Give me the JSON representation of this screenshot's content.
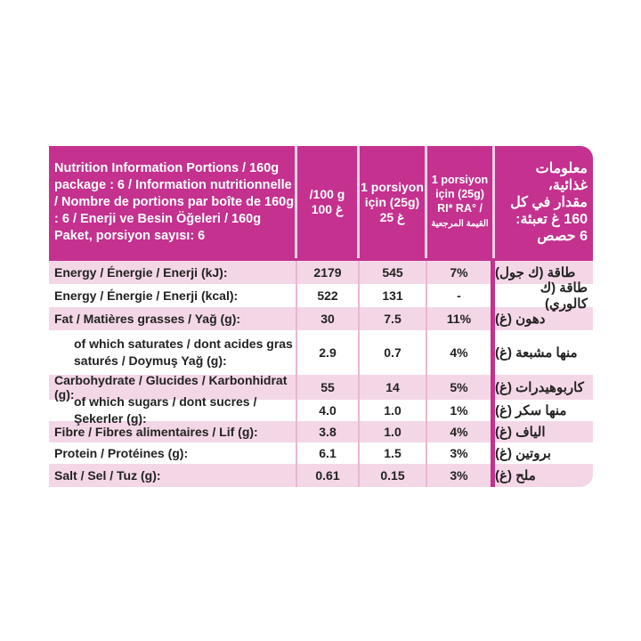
{
  "header": {
    "col1": "Nutrition Information Portions / 160g package : 6 / Information nutritionnelle / Nombre de portions par boîte de 160g : 6 / Enerji ve Besin Öğeleri / 160g Paket, porsiyon sayısı: 6",
    "col2": [
      "/100 g",
      "100 غ"
    ],
    "col3": [
      "1 porsiyon",
      "için (25g)",
      "25 غ"
    ],
    "col4": [
      "1 porsiyon",
      "için (25g)",
      "RI* RA° /",
      "القيمة المرجعية"
    ],
    "col5": [
      "معلومات غذائية،",
      "مقدار في كل",
      "160 غ تعبئة:",
      "6 حصص"
    ]
  },
  "rows": [
    {
      "label": "Energy / Énergie / Enerji (kJ):",
      "per100": "2179",
      "perPortion": "545",
      "ri": "7%",
      "arabic": "طاقة (ك جول)"
    },
    {
      "label": "Energy / Énergie / Enerji (kcal):",
      "per100": "522",
      "perPortion": "131",
      "ri": "-",
      "arabic": "طاقة (ك كالوري)"
    },
    {
      "label": "Fat / Matières grasses / Yağ (g):",
      "per100": "30",
      "perPortion": "7.5",
      "ri": "11%",
      "arabic": "دهون (غ)"
    },
    {
      "label": "of which saturates / dont acides gras saturés / Doymuş Yağ (g):",
      "per100": "2.9",
      "perPortion": "0.7",
      "ri": "4%",
      "arabic": "منها مشبعة (غ)"
    },
    {
      "label": "Carbohydrate / Glucides / Karbonhidrat (g):",
      "per100": "55",
      "perPortion": "14",
      "ri": "5%",
      "arabic": "كاربوهيدرات (غ)"
    },
    {
      "label": "of which sugars / dont sucres / Şekerler (g):",
      "per100": "4.0",
      "perPortion": "1.0",
      "ri": "1%",
      "arabic": "منها سكر (غ)"
    },
    {
      "label": "Fibre / Fibres alimentaires / Lif (g):",
      "per100": "3.8",
      "perPortion": "1.0",
      "ri": "4%",
      "arabic": "الياف (غ)"
    },
    {
      "label": "Protein / Protéines (g):",
      "per100": "6.1",
      "perPortion": "1.5",
      "ri": "3%",
      "arabic": "بروتين (غ)"
    },
    {
      "label": "Salt / Sel / Tuz (g):",
      "per100": "0.61",
      "perPortion": "0.15",
      "ri": "3%",
      "arabic": "ملح (غ)"
    }
  ],
  "colors": {
    "header": "#c4318f",
    "rowTint": "#f4d7e7"
  }
}
